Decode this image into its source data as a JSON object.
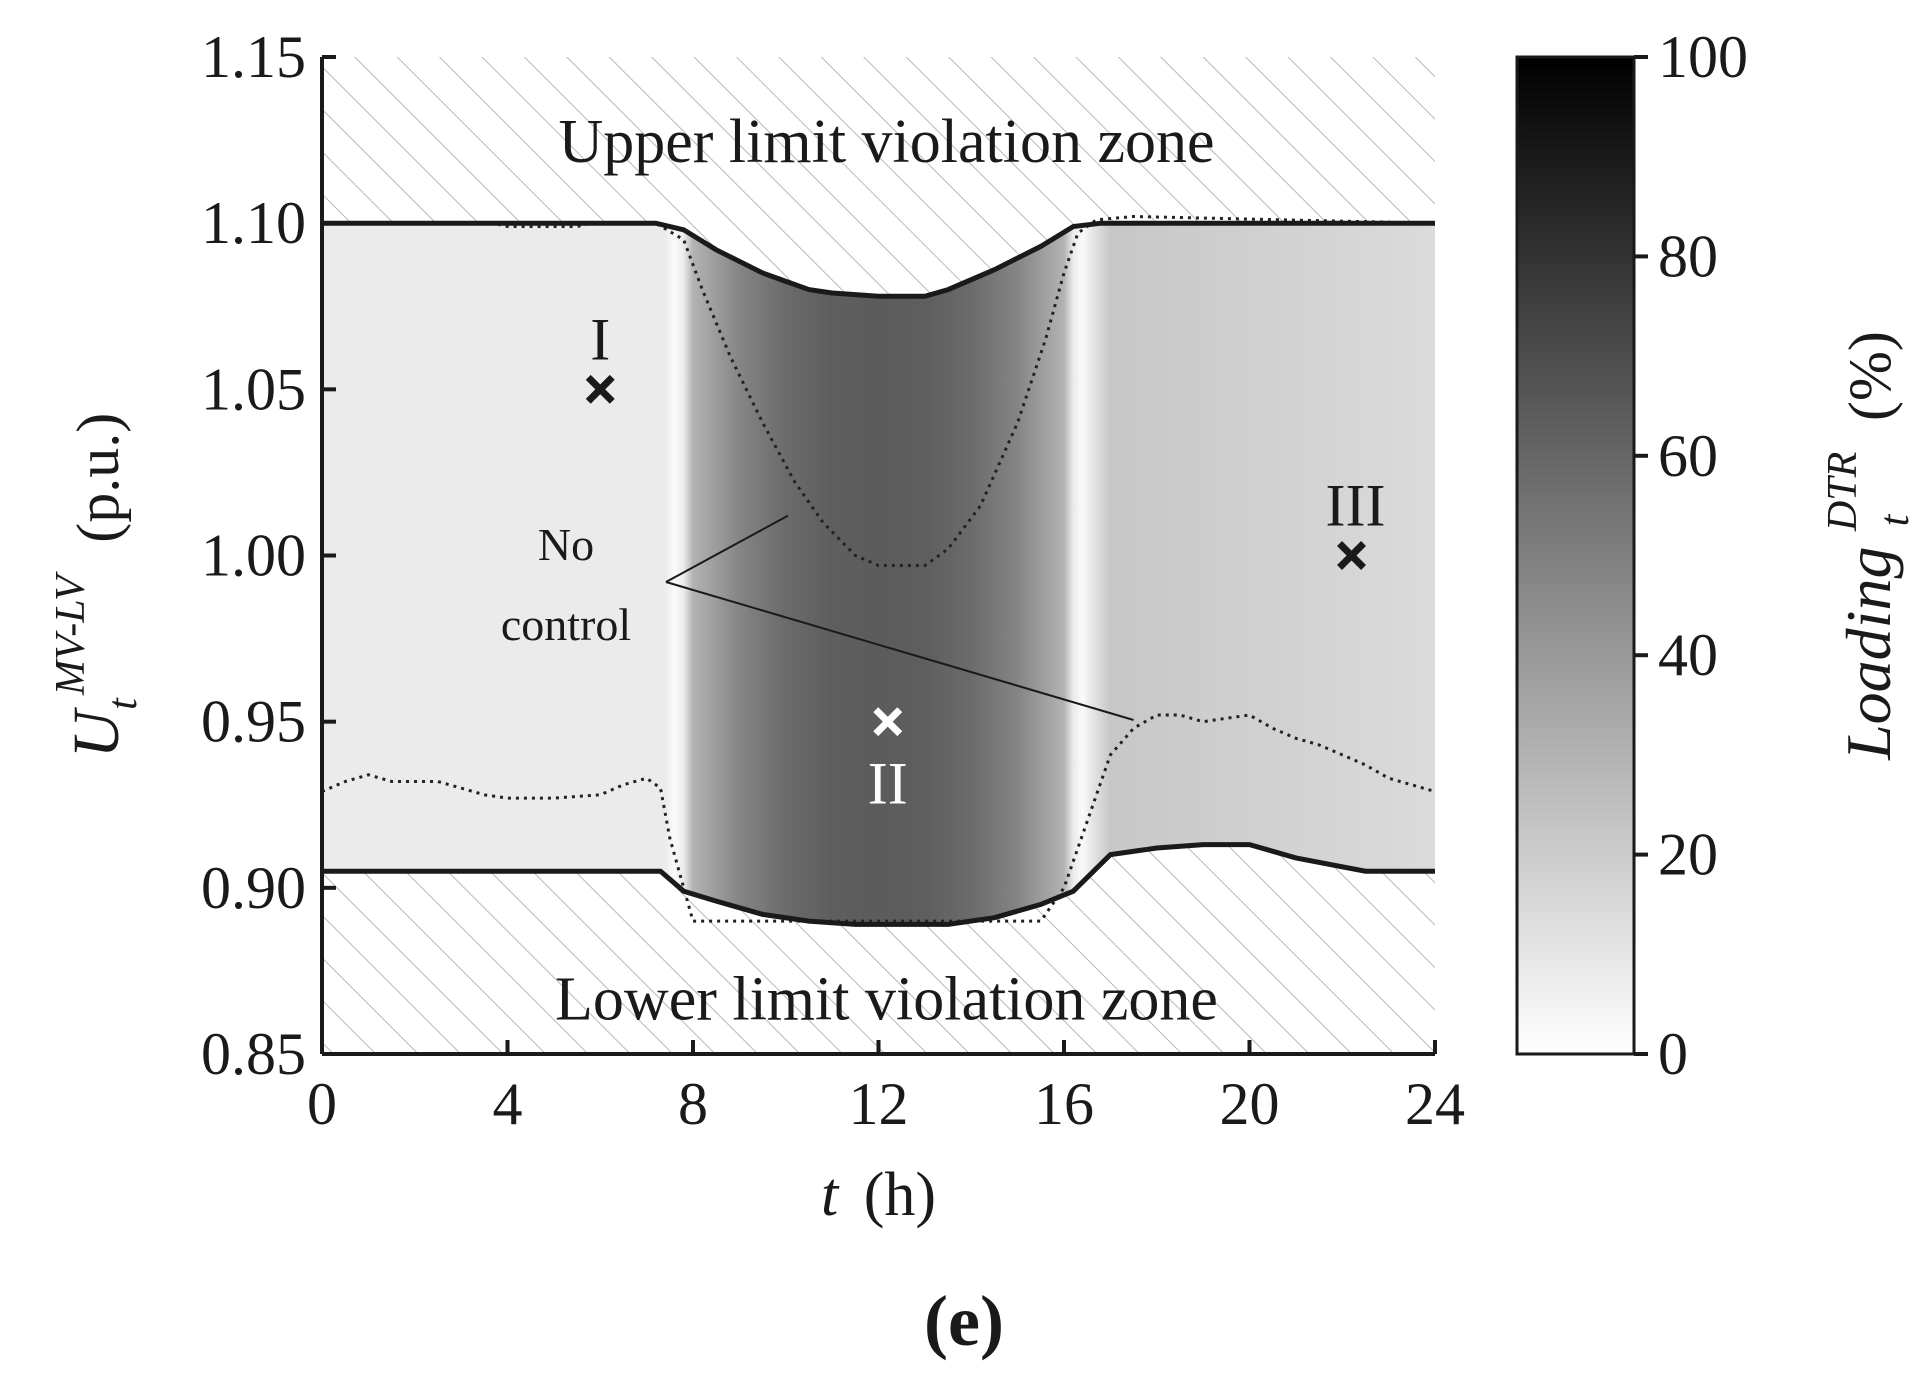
{
  "chart_data": {
    "type": "heatmap",
    "xlabel_symbol": "t",
    "xlabel_unit": "(h)",
    "ylabel_symbol": "U",
    "ylabel_sub": "t",
    "ylabel_sup": "MV-LV",
    "ylabel_unit": "(p.u.)",
    "xlim": [
      0,
      24
    ],
    "ylim": [
      0.85,
      1.15
    ],
    "xticks": [
      "0",
      "4",
      "8",
      "12",
      "16",
      "20",
      "24"
    ],
    "yticks": [
      "0.85",
      "0.90",
      "0.95",
      "1.00",
      "1.05",
      "1.10",
      "1.15"
    ],
    "colorbar": {
      "label_main": "Loading",
      "label_sub": "t",
      "label_sup": "DTR",
      "label_unit": "(%)",
      "range": [
        0,
        100
      ],
      "ticks": [
        "0",
        "20",
        "40",
        "60",
        "80",
        "100"
      ]
    },
    "zones": {
      "upper": "Upper limit violation zone",
      "lower": "Lower limit violation zone"
    },
    "loading_profile": {
      "t": [
        0,
        7.4,
        7.6,
        7.8,
        8,
        9,
        10,
        11,
        12,
        13,
        14,
        15,
        16,
        16.2,
        16.4,
        16.6,
        17,
        24
      ],
      "loading": [
        8,
        8,
        2,
        8,
        30,
        48,
        58,
        63,
        64,
        63,
        58,
        48,
        30,
        8,
        2,
        10,
        22,
        14
      ]
    },
    "upper_limit": {
      "t": [
        0,
        7.2,
        7.8,
        8.5,
        9.5,
        10.5,
        11,
        12,
        13,
        13.5,
        14.5,
        15.5,
        16.2,
        16.8,
        24
      ],
      "u": [
        1.1,
        1.1,
        1.098,
        1.092,
        1.085,
        1.08,
        1.079,
        1.078,
        1.078,
        1.08,
        1.086,
        1.093,
        1.099,
        1.1,
        1.1
      ]
    },
    "lower_limit": {
      "t": [
        0,
        7.3,
        7.8,
        8.5,
        9.5,
        10.5,
        11.5,
        12.5,
        13.5,
        14.5,
        15.5,
        16.2,
        17.0,
        18.0,
        19.0,
        20.0,
        21.0,
        22.5,
        24
      ],
      "u": [
        0.905,
        0.905,
        0.899,
        0.896,
        0.892,
        0.89,
        0.889,
        0.889,
        0.889,
        0.891,
        0.895,
        0.899,
        0.91,
        0.912,
        0.913,
        0.913,
        0.909,
        0.905,
        0.905
      ]
    },
    "no_control_upper": {
      "t": [
        0,
        3.7,
        4.0,
        5.5,
        5.8,
        7.2,
        7.8,
        8.2,
        8.8,
        9.5,
        10.2,
        10.8,
        11.5,
        12.0,
        12.5,
        13.0,
        13.5,
        14.2,
        15.0,
        15.6,
        16.0,
        16.3,
        16.7,
        17.5,
        24
      ],
      "u": [
        1.1,
        1.1,
        1.099,
        1.099,
        1.1,
        1.1,
        1.095,
        1.08,
        1.06,
        1.04,
        1.022,
        1.01,
        1.0,
        0.997,
        0.997,
        0.997,
        1.002,
        1.015,
        1.04,
        1.065,
        1.085,
        1.097,
        1.101,
        1.102,
        1.1
      ]
    },
    "no_control_lower": {
      "t": [
        0,
        0.5,
        1.0,
        1.5,
        2.5,
        3.0,
        3.5,
        4.0,
        5.0,
        6.0,
        6.5,
        7.0,
        7.3,
        7.5,
        7.8,
        8.0,
        15.5,
        16.0,
        16.5,
        17.0,
        17.5,
        18.0,
        18.5,
        19.0,
        19.5,
        20.0,
        20.5,
        21.0,
        21.5,
        22.0,
        22.5,
        23.0,
        24
      ],
      "u": [
        0.929,
        0.932,
        0.934,
        0.932,
        0.932,
        0.93,
        0.928,
        0.927,
        0.927,
        0.928,
        0.931,
        0.933,
        0.93,
        0.915,
        0.9,
        0.89,
        0.89,
        0.9,
        0.92,
        0.94,
        0.948,
        0.952,
        0.952,
        0.95,
        0.951,
        0.952,
        0.948,
        0.945,
        0.943,
        0.94,
        0.937,
        0.933,
        0.929
      ]
    },
    "no_control_label": [
      "No",
      "control"
    ],
    "points": [
      {
        "label": "I",
        "t": 6.0,
        "u": 1.05,
        "color": "#1a1a1a"
      },
      {
        "label": "II",
        "t": 12.2,
        "u": 0.95,
        "color": "#ffffff"
      },
      {
        "label": "III",
        "t": 22.2,
        "u": 1.0,
        "color": "#1a1a1a"
      }
    ],
    "caption": "(e)"
  }
}
